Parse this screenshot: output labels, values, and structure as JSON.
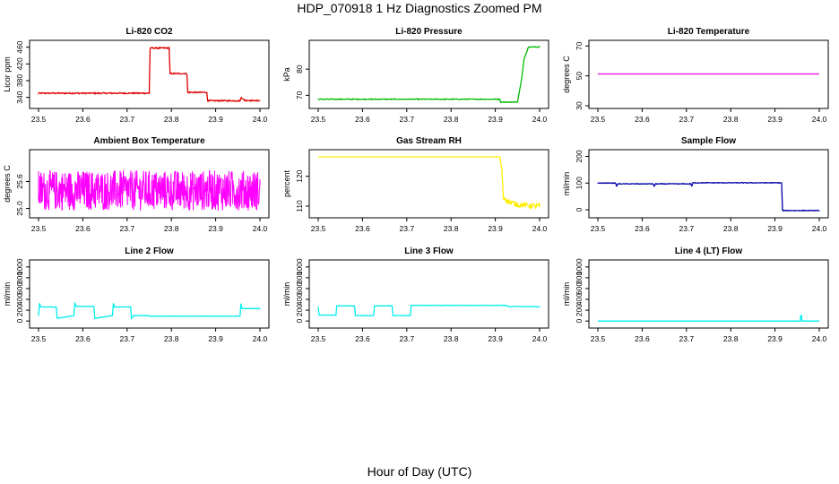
{
  "page": {
    "title": "HDP_070918  1 Hz Diagnostics Zoomed PM",
    "xlabel": "Hour of Day (UTC)"
  },
  "chart_data": [
    {
      "type": "line",
      "title": "Li-820 CO2",
      "ylabel": "Licor ppm",
      "color": "#e00000",
      "xlim": [
        23.5,
        24.0
      ],
      "ylim": [
        320,
        470
      ],
      "xticks": [
        23.5,
        23.6,
        23.7,
        23.8,
        23.9,
        24.0
      ],
      "yticks": [
        340,
        380,
        420,
        460
      ],
      "x": [
        23.5,
        23.75,
        23.752,
        23.795,
        23.797,
        23.835,
        23.837,
        23.88,
        23.882,
        23.955,
        23.958,
        23.965,
        24.0
      ],
      "y": [
        350,
        350,
        458,
        458,
        397,
        397,
        352,
        352,
        332,
        332,
        340,
        333,
        332
      ],
      "noise": 1.5
    },
    {
      "type": "line",
      "title": "Li-820 Pressure",
      "ylabel": "kPa",
      "color": "#00bb00",
      "xlim": [
        23.5,
        24.0
      ],
      "ylim": [
        66,
        90
      ],
      "xticks": [
        23.5,
        23.6,
        23.7,
        23.8,
        23.9,
        24.0
      ],
      "yticks": [
        70,
        80
      ],
      "x": [
        23.5,
        23.91,
        23.912,
        23.95,
        23.96,
        23.965,
        23.975,
        24.0
      ],
      "y": [
        68.5,
        68.5,
        67.4,
        67.4,
        77,
        84,
        88.5,
        88.5
      ],
      "noise": 0.15
    },
    {
      "type": "line",
      "title": "Li-820 Temperature",
      "ylabel": "degrees C",
      "color": "#ee00ee",
      "xlim": [
        23.5,
        24.0
      ],
      "ylim": [
        30,
        72
      ],
      "xticks": [
        23.5,
        23.6,
        23.7,
        23.8,
        23.9,
        24.0
      ],
      "yticks": [
        30,
        50,
        70
      ],
      "x": [
        23.5,
        24.0
      ],
      "y": [
        51.3,
        51.3
      ],
      "noise": 0
    },
    {
      "type": "line",
      "title": "Ambient Box Temperature",
      "ylabel": "degrees C",
      "color": "#ff00ff",
      "xlim": [
        23.5,
        24.0
      ],
      "ylim": [
        24.85,
        26.25
      ],
      "xticks": [
        23.5,
        23.6,
        23.7,
        23.8,
        23.9,
        24.0
      ],
      "yticks": [
        25.0,
        25.6
      ],
      "x": [
        23.5,
        24.0
      ],
      "y": [
        25.4,
        25.4
      ],
      "noise": 0.45,
      "dense": true
    },
    {
      "type": "line",
      "title": "Gas Stream RH",
      "ylabel": "percent",
      "color": "#ffee00",
      "xlim": [
        23.5,
        24.0
      ],
      "ylim": [
        107,
        128
      ],
      "xticks": [
        23.5,
        23.6,
        23.7,
        23.8,
        23.9,
        24.0
      ],
      "yticks": [
        110,
        120
      ],
      "x": [
        23.5,
        23.91,
        23.915,
        23.918,
        23.93,
        23.95,
        24.0
      ],
      "y": [
        126.5,
        126.5,
        122,
        113,
        111.5,
        110.5,
        110
      ],
      "noise": 0.9,
      "noiseFrom": 23.915
    },
    {
      "type": "line",
      "title": "Sample Flow",
      "ylabel": "ml/min",
      "color": "#0000aa",
      "xlim": [
        23.5,
        24.0
      ],
      "ylim": [
        -20,
        215
      ],
      "xticks": [
        23.5,
        23.6,
        23.7,
        23.8,
        23.9,
        24.0
      ],
      "yticks": [
        0,
        100,
        200
      ],
      "x": [
        23.5,
        23.54,
        23.542,
        23.545,
        23.625,
        23.627,
        23.63,
        23.71,
        23.712,
        23.715,
        23.915,
        23.917,
        24.0
      ],
      "y": [
        100,
        100,
        88,
        97,
        97,
        87,
        97,
        97,
        88,
        101,
        101,
        -3,
        -3
      ],
      "noise": 1.2
    },
    {
      "type": "line",
      "title": "Line 2 Flow",
      "ylabel": "ml/min",
      "color": "#00eeee",
      "xlim": [
        23.5,
        24.0
      ],
      "ylim": [
        -80,
        1080
      ],
      "xticks": [
        23.5,
        23.6,
        23.7,
        23.8,
        23.9,
        24.0
      ],
      "yticks": [
        0,
        200,
        400,
        600,
        800,
        1000
      ],
      "x": [
        23.5,
        23.502,
        23.505,
        23.54,
        23.542,
        23.58,
        23.582,
        23.585,
        23.625,
        23.627,
        23.667,
        23.669,
        23.672,
        23.708,
        23.71,
        23.715,
        23.75,
        23.752,
        23.955,
        23.957,
        23.96,
        24.0
      ],
      "y": [
        100,
        330,
        260,
        260,
        50,
        100,
        330,
        270,
        270,
        50,
        100,
        330,
        260,
        260,
        50,
        100,
        100,
        90,
        90,
        320,
        230,
        230
      ],
      "noise": 3
    },
    {
      "type": "line",
      "title": "Line 3 Flow",
      "ylabel": "ml/min",
      "color": "#00eeee",
      "xlim": [
        23.5,
        24.0
      ],
      "ylim": [
        -80,
        1080
      ],
      "xticks": [
        23.5,
        23.6,
        23.7,
        23.8,
        23.9,
        24.0
      ],
      "yticks": [
        0,
        200,
        400,
        600,
        800,
        1000
      ],
      "x": [
        23.5,
        23.502,
        23.54,
        23.542,
        23.582,
        23.584,
        23.625,
        23.627,
        23.667,
        23.669,
        23.708,
        23.71,
        23.92,
        23.93,
        24.0
      ],
      "y": [
        260,
        110,
        110,
        280,
        280,
        100,
        100,
        280,
        280,
        100,
        100,
        290,
        290,
        270,
        265
      ],
      "noise": 3
    },
    {
      "type": "line",
      "title": "Line 4 (LT) Flow",
      "ylabel": "ml/min",
      "color": "#00eeee",
      "xlim": [
        23.5,
        24.0
      ],
      "ylim": [
        -80,
        1080
      ],
      "xticks": [
        23.5,
        23.6,
        23.7,
        23.8,
        23.9,
        24.0
      ],
      "yticks": [
        0,
        200,
        400,
        600,
        800,
        1000
      ],
      "x": [
        23.5,
        23.957,
        23.958,
        23.96,
        23.961,
        24.0
      ],
      "y": [
        0,
        0,
        100,
        100,
        0,
        0
      ],
      "noise": 0
    }
  ]
}
